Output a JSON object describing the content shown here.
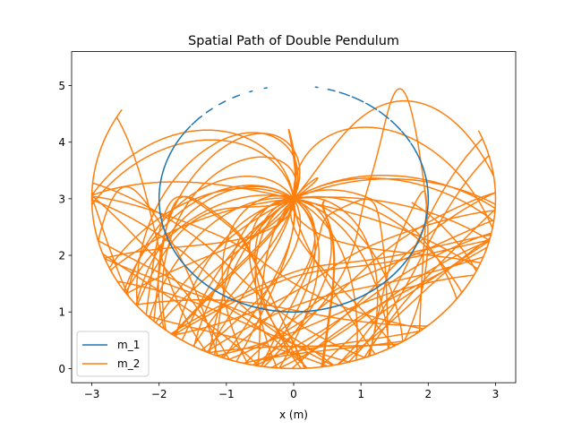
{
  "chart_data": {
    "type": "line",
    "title": "Spatial Path of Double Pendulum",
    "xlabel": "x (m)",
    "ylabel": "",
    "xlim": [
      -3.3,
      3.3
    ],
    "ylim": [
      -0.25,
      5.6
    ],
    "xticks": [
      -3,
      -2,
      -1,
      0,
      1,
      2,
      3
    ],
    "yticks": [
      0,
      1,
      2,
      3,
      4,
      5
    ],
    "xtick_labels": [
      "−3",
      "−2",
      "−1",
      "0",
      "1",
      "2",
      "3"
    ],
    "ytick_labels": [
      "0",
      "1",
      "2",
      "3",
      "4",
      "5"
    ],
    "grid": false,
    "legend_position": "lower-left",
    "series": [
      {
        "name": "m_1",
        "color": "#1f77b4",
        "description_points": {
          "center": [
            0,
            3
          ],
          "radius": 2,
          "start_point": [
            -0.4,
            5.0
          ],
          "end_point": [
            0.0,
            5.0
          ]
        }
      },
      {
        "name": "m_2",
        "color": "#ff7f0e",
        "description_points": {
          "center": [
            0,
            3
          ],
          "outer_radius": 3,
          "inner_radius": 1,
          "start_point": [
            0.0,
            4.0
          ],
          "end_point": [
            -0.15,
            4.3
          ]
        }
      }
    ]
  }
}
